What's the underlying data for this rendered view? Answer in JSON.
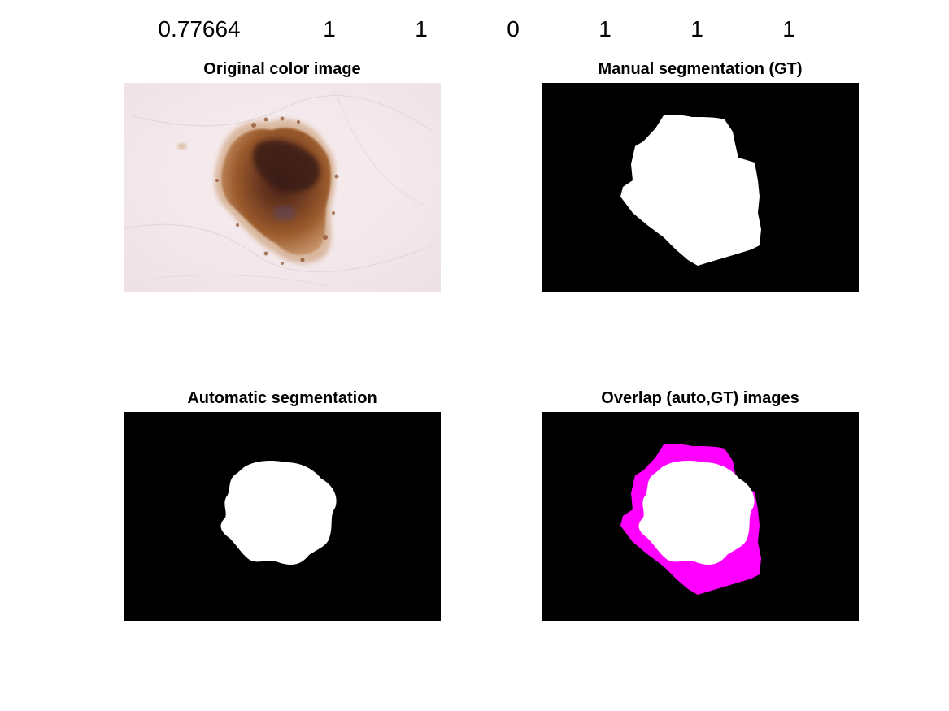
{
  "metrics": {
    "values": [
      "0.77664",
      "1",
      "1",
      "0",
      "1",
      "1",
      "1"
    ]
  },
  "panels": {
    "original": {
      "title": "Original color image"
    },
    "manual": {
      "title": "Manual segmentation (GT)"
    },
    "automatic": {
      "title": "Automatic segmentation"
    },
    "overlap": {
      "title": "Overlap (auto,GT) images"
    }
  },
  "colors": {
    "background": "#ffffff",
    "mask_bg": "#000000",
    "mask_fg": "#ffffff",
    "overlap_diff": "#ff00ff",
    "skin": "#f4ebee",
    "lesion_dark": "#4a2418",
    "lesion_mid": "#8a4a26",
    "lesion_light": "#b07a4a"
  }
}
